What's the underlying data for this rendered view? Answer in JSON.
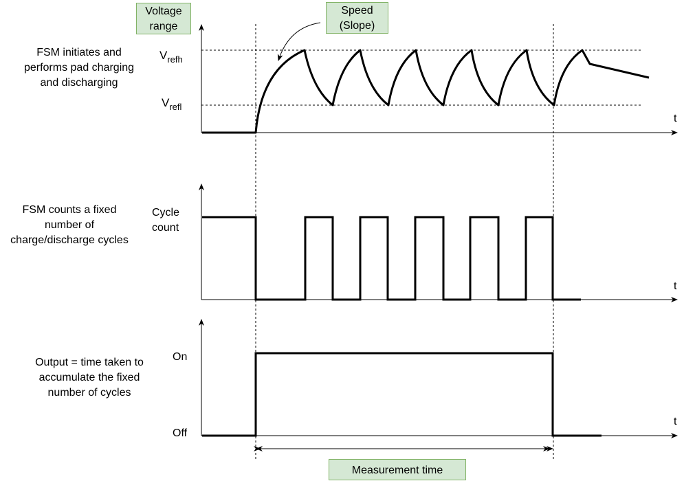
{
  "boxes": {
    "voltage_range": [
      "Voltage",
      "range"
    ],
    "speed": [
      "Speed",
      "(Slope)"
    ],
    "measurement_time": "Measurement time"
  },
  "panels": [
    {
      "description": [
        "FSM initiates and",
        "performs pad charging",
        "and discharging"
      ],
      "levels": {
        "high_main": "V",
        "high_sub": "refh",
        "low_main": "V",
        "low_sub": "refl"
      },
      "axis_label": "t"
    },
    {
      "description": [
        "FSM counts a fixed",
        "number of",
        "charge/discharge cycles"
      ],
      "levels": {
        "high": [
          "Cycle",
          "count"
        ]
      },
      "axis_label": "t"
    },
    {
      "description": [
        "Output = time taken to",
        "accumulate the fixed",
        "number of cycles"
      ],
      "levels": {
        "high": "On",
        "low": "Off"
      },
      "axis_label": "t"
    }
  ],
  "colors": {
    "box_fill": "#d5e8d4",
    "box_border": "#82b366",
    "line": "#000000"
  }
}
